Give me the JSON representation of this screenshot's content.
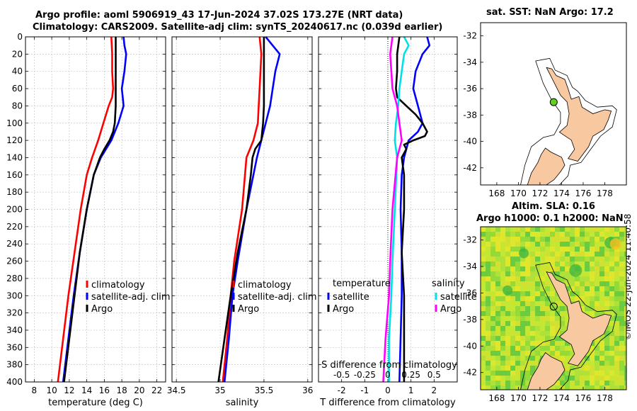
{
  "titles": {
    "main_line1": "Argo profile: aoml 5906919_43 17-Jun-2024 37.02S 173.27E (NRT data)",
    "main_line2": "Climatology: CARS2009. Satellite-adj clim: synTS_20240617.nc (0.039d earlier)",
    "sst": "sat. SST: NaN Argo: 17.2",
    "sla_line1": "Altim. SLA: 0.16",
    "sla_line2": "Argo h1000: 0.1 h2000: NaN",
    "credit": "©IMOS 22-Jun-2024 11:40:58"
  },
  "colors": {
    "climatology": "#ff0000",
    "satellite": "#0000ff",
    "argo": "#000000",
    "cyan": "#00e0e8",
    "magenta": "#ff00ff",
    "land": "#f8c8a0"
  },
  "chart_data": [
    {
      "type": "line",
      "id": "temperature",
      "xlabel": "temperature (deg C)",
      "xlim": [
        7,
        23
      ],
      "ylim": [
        0,
        400
      ],
      "yreversed": true,
      "xticks": [
        8,
        10,
        12,
        14,
        16,
        18,
        20,
        22
      ],
      "yticks": [
        0,
        20,
        40,
        60,
        80,
        100,
        120,
        140,
        160,
        180,
        200,
        220,
        240,
        260,
        280,
        300,
        320,
        340,
        360,
        380,
        400
      ],
      "legend": [
        "climatology",
        "satellite-adj. clim",
        "Argo"
      ],
      "series": [
        {
          "name": "climatology",
          "color": "climatology",
          "depth": [
            0,
            20,
            40,
            60,
            70,
            80,
            100,
            120,
            140,
            160,
            200,
            250,
            300,
            350,
            400
          ],
          "value": [
            16.8,
            16.9,
            16.9,
            17.0,
            16.9,
            16.5,
            15.9,
            15.3,
            14.6,
            14.0,
            13.3,
            12.6,
            11.9,
            11.3,
            10.7
          ]
        },
        {
          "name": "satellite-adj. clim",
          "color": "satellite",
          "depth": [
            0,
            10,
            20,
            40,
            60,
            70,
            80,
            100,
            120,
            130,
            140,
            160,
            200,
            250,
            300,
            350,
            400
          ],
          "value": [
            18.2,
            18.3,
            18.5,
            18.3,
            18.0,
            18.1,
            18.2,
            17.6,
            16.8,
            16.2,
            15.6,
            14.8,
            14.0,
            13.2,
            12.5,
            11.9,
            11.3
          ]
        },
        {
          "name": "Argo",
          "color": "argo",
          "depth": [
            0,
            20,
            40,
            60,
            80,
            100,
            110,
            120,
            130,
            140,
            160,
            200,
            250,
            300,
            350,
            400
          ],
          "value": [
            17.3,
            17.3,
            17.3,
            17.3,
            17.3,
            17.2,
            17.0,
            16.6,
            16.0,
            15.5,
            14.8,
            14.0,
            13.2,
            12.6,
            12.0,
            11.4
          ]
        }
      ]
    },
    {
      "type": "line",
      "id": "salinity",
      "xlabel": "salinity",
      "xlim": [
        34.45,
        36.05
      ],
      "ylim": [
        0,
        400
      ],
      "yreversed": true,
      "xticks": [
        34.5,
        35,
        35.5,
        36
      ],
      "legend": [
        "climatology",
        "satellite-adj. clim",
        "Argo"
      ],
      "series": [
        {
          "name": "climatology",
          "color": "climatology",
          "depth": [
            0,
            20,
            40,
            60,
            80,
            100,
            120,
            140,
            200,
            260,
            300,
            350,
            400
          ],
          "value": [
            35.45,
            35.47,
            35.46,
            35.45,
            35.44,
            35.43,
            35.38,
            35.3,
            35.25,
            35.16,
            35.12,
            35.08,
            35.03
          ]
        },
        {
          "name": "satellite-adj. clim",
          "color": "satellite",
          "depth": [
            0,
            10,
            20,
            40,
            60,
            80,
            100,
            120,
            140,
            200,
            260,
            300,
            350,
            400
          ],
          "value": [
            35.52,
            35.6,
            35.68,
            35.63,
            35.6,
            35.57,
            35.52,
            35.47,
            35.42,
            35.3,
            35.2,
            35.14,
            35.1,
            35.05
          ]
        },
        {
          "name": "Argo",
          "color": "argo",
          "depth": [
            0,
            20,
            40,
            60,
            80,
            100,
            120,
            130,
            140,
            160,
            200,
            250,
            300,
            350,
            400
          ],
          "value": [
            35.5,
            35.5,
            35.5,
            35.5,
            35.5,
            35.49,
            35.47,
            35.4,
            35.37,
            35.35,
            35.3,
            35.2,
            35.12,
            35.05,
            34.98
          ]
        }
      ]
    },
    {
      "type": "line",
      "id": "difference",
      "xlabel": "T difference from climatology",
      "x2label": "S difference from climatology",
      "xlim": [
        -3,
        3
      ],
      "ylim": [
        0,
        400
      ],
      "yreversed": true,
      "xticks": [
        -2,
        -1,
        0,
        1,
        2
      ],
      "x2ticks": [
        "-0.5",
        "-0.25",
        "0",
        "0.25",
        "0.5"
      ],
      "legend_temperature": {
        "title": "temperature",
        "items": [
          "satellite",
          "Argo"
        ]
      },
      "legend_salinity": {
        "title": "salinity",
        "items": [
          "satellite",
          "Argo"
        ]
      },
      "series": [
        {
          "name": "T satellite",
          "color": "satellite",
          "depth": [
            0,
            10,
            20,
            40,
            60,
            80,
            100,
            110,
            120,
            140,
            160,
            200,
            250,
            300,
            350,
            400
          ],
          "value": [
            1.7,
            1.8,
            1.5,
            1.2,
            1.1,
            1.3,
            1.5,
            1.3,
            0.9,
            0.7,
            0.6,
            0.55,
            0.6,
            0.6,
            0.55,
            0.5
          ]
        },
        {
          "name": "T Argo",
          "color": "argo",
          "depth": [
            0,
            20,
            40,
            60,
            70,
            80,
            90,
            100,
            110,
            115,
            120,
            125,
            130,
            140,
            160,
            200,
            250,
            300,
            350,
            400
          ],
          "value": [
            0.5,
            0.4,
            0.4,
            0.35,
            0.4,
            0.8,
            1.2,
            1.5,
            1.7,
            1.6,
            1.1,
            0.7,
            0.8,
            0.6,
            0.7,
            0.7,
            0.6,
            0.7,
            0.7,
            0.7
          ]
        },
        {
          "name": "S satellite",
          "color": "cyan",
          "depth": [
            0,
            10,
            20,
            40,
            60,
            80,
            100,
            120,
            140,
            200,
            260,
            300,
            350,
            400
          ],
          "value": [
            0.7,
            0.9,
            0.7,
            0.6,
            0.5,
            0.45,
            0.35,
            0.3,
            0.4,
            0.3,
            0.2,
            0.15,
            0.05,
            0.05
          ]
        },
        {
          "name": "S Argo",
          "color": "magenta",
          "depth": [
            0,
            20,
            40,
            60,
            80,
            100,
            120,
            140,
            200,
            260,
            300,
            350,
            400
          ],
          "value": [
            0.2,
            0.1,
            0.15,
            0.2,
            0.4,
            0.5,
            0.6,
            0.4,
            0.2,
            0.1,
            0.05,
            -0.1,
            -0.2
          ]
        }
      ]
    },
    {
      "type": "map",
      "id": "sst-map",
      "xticks": [
        168,
        170,
        172,
        174,
        176,
        178
      ],
      "yticks": [
        -32,
        -34,
        -36,
        -38,
        -40,
        -42
      ],
      "xlim": [
        166.5,
        180
      ],
      "ylim": [
        -43.3,
        -31
      ],
      "profile_lon": 173.27,
      "profile_lat": -37.02
    },
    {
      "type": "map",
      "id": "sla-map",
      "xticks": [
        168,
        170,
        172,
        174,
        176,
        178
      ],
      "yticks": [
        -32,
        -34,
        -36,
        -38,
        -40,
        -42
      ],
      "xlim": [
        166.5,
        180
      ],
      "ylim": [
        -43.3,
        -31
      ],
      "profile_lon": 173.27,
      "profile_lat": -37.02
    }
  ]
}
